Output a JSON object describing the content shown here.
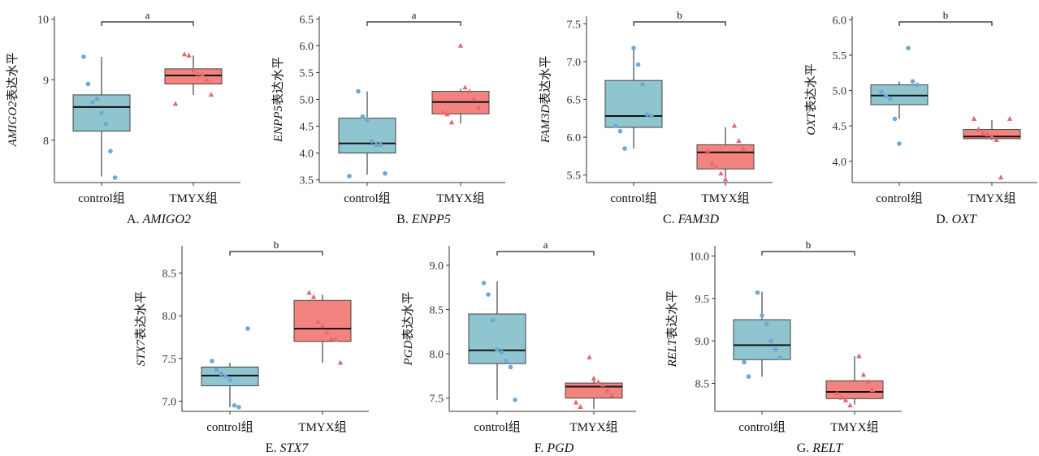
{
  "colors": {
    "control_fill": "#8ec5cf",
    "control_point": "#6fa8d3",
    "tmyx_fill": "#f3837f",
    "tmyx_point": "#e5686a",
    "axis": "#333333"
  },
  "chart_data": [
    {
      "type": "box",
      "caption_prefix": "A. ",
      "gene": "AMIGO2",
      "ylabel_suffix": "表达水平",
      "yticks": [
        8,
        9,
        10
      ],
      "ylim": [
        7.3,
        10.05
      ],
      "categories": [
        "control组",
        "TMYX组"
      ],
      "significance": "a",
      "series": [
        {
          "category": "control组",
          "q1": 8.15,
          "median": 8.55,
          "q3": 8.75,
          "whisker_low": 7.4,
          "whisker_high": 9.38,
          "points": [
            9.38,
            8.93,
            8.63,
            8.68,
            8.45,
            8.27,
            7.82,
            7.38
          ]
        },
        {
          "category": "TMYX组",
          "q1": 8.93,
          "median": 9.07,
          "q3": 9.18,
          "whisker_low": 8.75,
          "whisker_high": 9.4,
          "points": [
            9.42,
            9.4,
            9.15,
            9.1,
            9.08,
            9.0,
            8.75,
            8.6
          ]
        }
      ]
    },
    {
      "type": "box",
      "caption_prefix": "B. ",
      "gene": "ENPP5",
      "ylabel_suffix": "表达水平",
      "yticks": [
        3.5,
        4.0,
        4.5,
        5.0,
        5.5,
        6.0,
        6.5
      ],
      "ylim": [
        3.45,
        6.55
      ],
      "categories": [
        "control组",
        "TMYX组"
      ],
      "significance": "a",
      "series": [
        {
          "category": "control组",
          "q1": 4.0,
          "median": 4.18,
          "q3": 4.65,
          "whisker_low": 3.6,
          "whisker_high": 5.15,
          "points": [
            5.15,
            4.68,
            4.62,
            4.22,
            4.15,
            4.15,
            3.62,
            3.57
          ]
        },
        {
          "category": "TMYX组",
          "q1": 4.73,
          "median": 4.95,
          "q3": 5.15,
          "whisker_low": 4.55,
          "whisker_high": 5.2,
          "points": [
            6.0,
            5.22,
            5.15,
            5.0,
            4.85,
            4.75,
            4.72,
            4.57
          ]
        }
      ]
    },
    {
      "type": "box",
      "caption_prefix": "C. ",
      "gene": "FAM3D",
      "ylabel_suffix": "表达水平",
      "yticks": [
        5.5,
        6.0,
        6.5,
        7.0,
        7.5
      ],
      "ylim": [
        5.4,
        7.6
      ],
      "categories": [
        "control组",
        "TMYX组"
      ],
      "significance": "b",
      "series": [
        {
          "category": "control组",
          "q1": 6.13,
          "median": 6.28,
          "q3": 6.75,
          "whisker_low": 5.85,
          "whisker_high": 7.18,
          "points": [
            7.18,
            6.96,
            6.7,
            6.3,
            6.28,
            6.15,
            6.08,
            5.85
          ]
        },
        {
          "category": "TMYX组",
          "q1": 5.58,
          "median": 5.8,
          "q3": 5.9,
          "whisker_low": 5.45,
          "whisker_high": 6.13,
          "points": [
            6.15,
            5.95,
            5.85,
            5.82,
            5.65,
            5.6,
            5.52,
            5.44
          ]
        }
      ]
    },
    {
      "type": "box",
      "caption_prefix": "D. ",
      "gene": "OXT",
      "ylabel_suffix": "表达水平",
      "yticks": [
        4.0,
        4.5,
        5.0,
        5.5,
        6.0
      ],
      "ylim": [
        3.7,
        6.05
      ],
      "categories": [
        "control组",
        "TMYX组"
      ],
      "significance": "b",
      "series": [
        {
          "category": "control组",
          "q1": 4.8,
          "median": 4.93,
          "q3": 5.08,
          "whisker_low": 4.6,
          "whisker_high": 5.13,
          "points": [
            5.6,
            5.13,
            5.08,
            4.98,
            4.92,
            4.88,
            4.6,
            4.25
          ]
        },
        {
          "category": "TMYX组",
          "q1": 4.32,
          "median": 4.35,
          "q3": 4.45,
          "whisker_low": 4.3,
          "whisker_high": 4.58,
          "points": [
            4.6,
            4.6,
            4.45,
            4.4,
            4.38,
            4.35,
            4.3,
            3.77
          ]
        }
      ]
    },
    {
      "type": "box",
      "caption_prefix": "E. ",
      "gene": "STX7",
      "ylabel_suffix": "表达水平",
      "yticks": [
        7.0,
        7.5,
        8.0,
        8.5
      ],
      "ylim": [
        6.88,
        8.82
      ],
      "categories": [
        "control组",
        "TMYX组"
      ],
      "significance": "b",
      "series": [
        {
          "category": "control组",
          "q1": 7.18,
          "median": 7.3,
          "q3": 7.4,
          "whisker_low": 6.93,
          "whisker_high": 7.45,
          "points": [
            7.85,
            7.47,
            7.37,
            7.32,
            7.29,
            7.25,
            6.95,
            6.93
          ]
        },
        {
          "category": "TMYX组",
          "q1": 7.7,
          "median": 7.85,
          "q3": 8.18,
          "whisker_low": 7.45,
          "whisker_high": 8.25,
          "points": [
            8.27,
            8.22,
            7.93,
            7.88,
            7.8,
            7.73,
            7.72,
            7.45
          ]
        }
      ]
    },
    {
      "type": "box",
      "caption_prefix": "F. ",
      "gene": "PGD",
      "ylabel_suffix": "表达水平",
      "yticks": [
        7.5,
        8.0,
        8.5,
        9.0
      ],
      "ylim": [
        7.35,
        9.22
      ],
      "categories": [
        "control组",
        "TMYX组"
      ],
      "significance": "a",
      "series": [
        {
          "category": "control组",
          "q1": 7.89,
          "median": 8.04,
          "q3": 8.45,
          "whisker_low": 7.48,
          "whisker_high": 8.82,
          "points": [
            8.8,
            8.67,
            8.38,
            8.05,
            8.02,
            7.92,
            7.85,
            7.48
          ]
        },
        {
          "category": "TMYX组",
          "q1": 7.5,
          "median": 7.63,
          "q3": 7.67,
          "whisker_low": 7.38,
          "whisker_high": 7.7,
          "points": [
            7.96,
            7.72,
            7.68,
            7.65,
            7.58,
            7.53,
            7.45,
            7.4
          ]
        }
      ]
    },
    {
      "type": "box",
      "caption_prefix": "G. ",
      "gene": "RELT",
      "ylabel_suffix": "表达水平",
      "yticks": [
        8.5,
        9.0,
        9.5,
        10.0
      ],
      "ylim": [
        8.17,
        10.12
      ],
      "categories": [
        "control组",
        "TMYX组"
      ],
      "significance": "b",
      "series": [
        {
          "category": "control组",
          "q1": 8.78,
          "median": 8.95,
          "q3": 9.25,
          "whisker_low": 8.58,
          "whisker_high": 9.58,
          "points": [
            9.57,
            9.3,
            9.2,
            9.0,
            8.9,
            8.8,
            8.75,
            8.58
          ]
        },
        {
          "category": "TMYX组",
          "q1": 8.32,
          "median": 8.4,
          "q3": 8.53,
          "whisker_low": 8.25,
          "whisker_high": 8.82,
          "points": [
            8.82,
            8.6,
            8.52,
            8.42,
            8.38,
            8.33,
            8.3,
            8.24
          ]
        }
      ]
    }
  ]
}
